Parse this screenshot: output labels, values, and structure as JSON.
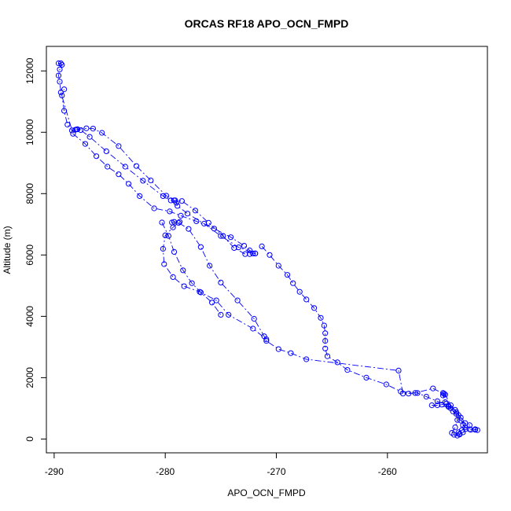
{
  "chart_data": {
    "type": "scatter",
    "title": "ORCAS RF18 APO_OCN_FMPD",
    "xlabel": "APO_OCN_FMPD",
    "ylabel": "Altitude (m)",
    "xlim": [
      -290.7,
      -251.0
    ],
    "ylim": [
      -450,
      12800
    ],
    "x_ticks": [
      -290,
      -280,
      -270,
      -260
    ],
    "y_ticks": [
      0,
      2000,
      4000,
      6000,
      8000,
      10000,
      12000
    ],
    "x_tick_labels": [
      "-290",
      "-280",
      "-270",
      "-260"
    ],
    "y_tick_labels": [
      "0",
      "2000",
      "4000",
      "6000",
      "8000",
      "10000",
      "12000"
    ],
    "grid": false,
    "legend": "none",
    "line_style": "dash-dot",
    "marker": "open-circle",
    "color": "#0000ff",
    "series": [
      {
        "points": [
          [
            -289.6,
            12250
          ],
          [
            -289.4,
            12250
          ],
          [
            -289.3,
            12200
          ],
          [
            -289.5,
            12050
          ],
          [
            -289.6,
            11850
          ],
          [
            -289.5,
            11650
          ],
          [
            -289.4,
            11300
          ],
          [
            -288.3,
            9950
          ],
          [
            -287.2,
            9620
          ],
          [
            -286.2,
            9220
          ],
          [
            -285.2,
            8880
          ],
          [
            -284.2,
            8630
          ],
          [
            -283.3,
            8320
          ],
          [
            -282.3,
            7920
          ],
          [
            -281.0,
            7520
          ],
          [
            -279.6,
            7420
          ],
          [
            -278.6,
            7280
          ],
          [
            -277.2,
            7100
          ],
          [
            -275.6,
            6860
          ],
          [
            -274.1,
            6580
          ],
          [
            -272.9,
            6300
          ],
          [
            -272.4,
            6150
          ],
          [
            -271.9,
            6050
          ],
          [
            -272.1,
            6050
          ],
          [
            -272.4,
            6030
          ]
        ]
      },
      {
        "points": [
          [
            -272.8,
            6030
          ],
          [
            -273.8,
            6230
          ],
          [
            -274.8,
            6620
          ],
          [
            -276.1,
            7050
          ],
          [
            -277.3,
            7450
          ],
          [
            -278.5,
            7760
          ],
          [
            -279.1,
            7780
          ],
          [
            -279.5,
            7780
          ],
          [
            -280.2,
            7920
          ],
          [
            -282.0,
            8420
          ],
          [
            -283.6,
            8880
          ],
          [
            -285.3,
            9380
          ],
          [
            -286.8,
            9850
          ],
          [
            -287.6,
            10070
          ],
          [
            -287.9,
            10100
          ],
          [
            -288.1,
            10080
          ],
          [
            -288.4,
            10060
          ],
          [
            -288.8,
            10250
          ],
          [
            -289.1,
            10700
          ],
          [
            -289.3,
            11200
          ],
          [
            -289.1,
            11400
          ]
        ]
      },
      {
        "points": [
          [
            -288.0,
            10090
          ],
          [
            -287.1,
            10130
          ],
          [
            -286.5,
            10120
          ],
          [
            -285.7,
            9980
          ],
          [
            -284.2,
            9550
          ],
          [
            -282.6,
            8900
          ],
          [
            -281.3,
            8430
          ],
          [
            -279.9,
            7930
          ],
          [
            -279.2,
            7780
          ],
          [
            -279.0,
            7700
          ],
          [
            -278.9,
            7600
          ],
          [
            -278.0,
            7350
          ],
          [
            -276.5,
            7020
          ],
          [
            -275.0,
            6620
          ],
          [
            -273.4,
            6250
          ],
          [
            -271.9,
            6050
          ]
        ]
      },
      {
        "points": [
          [
            -271.3,
            6280
          ],
          [
            -270.6,
            6000
          ],
          [
            -269.8,
            5650
          ],
          [
            -269.0,
            5350
          ],
          [
            -268.5,
            5080
          ],
          [
            -267.9,
            4800
          ],
          [
            -267.3,
            4550
          ],
          [
            -266.6,
            4270
          ],
          [
            -266.0,
            3950
          ],
          [
            -265.7,
            3700
          ],
          [
            -265.6,
            3450
          ],
          [
            -265.6,
            3200
          ],
          [
            -265.6,
            2950
          ],
          [
            -265.4,
            2700
          ],
          [
            -264.5,
            2500
          ],
          [
            -263.6,
            2250
          ],
          [
            -261.9,
            2000
          ],
          [
            -260.1,
            1780
          ],
          [
            -258.8,
            1550
          ],
          [
            -257.3,
            1500
          ],
          [
            -256.5,
            1380
          ],
          [
            -255.5,
            1230
          ],
          [
            -254.5,
            1080
          ],
          [
            -253.9,
            950
          ],
          [
            -253.4,
            700
          ],
          [
            -253.2,
            450
          ],
          [
            -253.0,
            380
          ],
          [
            -252.6,
            320
          ],
          [
            -252.1,
            300
          ],
          [
            -251.9,
            290
          ],
          [
            -252.1,
            320
          ],
          [
            -252.5,
            300
          ],
          [
            -253.2,
            220
          ],
          [
            -253.5,
            170
          ],
          [
            -253.7,
            110
          ],
          [
            -254.0,
            140
          ]
        ]
      },
      {
        "points": [
          [
            -254.2,
            200
          ],
          [
            -253.9,
            380
          ],
          [
            -253.7,
            620
          ],
          [
            -253.8,
            880
          ],
          [
            -254.3,
            1100
          ],
          [
            -254.8,
            1450
          ],
          [
            -255.9,
            1650
          ],
          [
            -257.5,
            1500
          ],
          [
            -258.1,
            1480
          ],
          [
            -258.6,
            1480
          ],
          [
            -259.0,
            2230
          ],
          [
            -267.3,
            2600
          ],
          [
            -268.7,
            2800
          ],
          [
            -269.8,
            2930
          ],
          [
            -270.9,
            3200
          ],
          [
            -271.1,
            3350
          ],
          [
            -272.0,
            3920
          ],
          [
            -273.5,
            4520
          ],
          [
            -275.0,
            5100
          ],
          [
            -276.0,
            5650
          ],
          [
            -276.8,
            6260
          ],
          [
            -277.9,
            6850
          ],
          [
            -278.8,
            7050
          ],
          [
            -279.4,
            7060
          ],
          [
            -279.2,
            7080
          ],
          [
            -278.7,
            7080
          ],
          [
            -279.3,
            6900
          ],
          [
            -280.0,
            6640
          ],
          [
            -280.2,
            6200
          ],
          [
            -280.1,
            5700
          ],
          [
            -279.3,
            5280
          ],
          [
            -278.3,
            4980
          ],
          [
            -276.9,
            4800
          ],
          [
            -275.4,
            4520
          ],
          [
            -274.3,
            4050
          ],
          [
            -272.1,
            3600
          ],
          [
            -270.9,
            3250
          ]
        ]
      },
      {
        "points": [
          [
            -280.3,
            7060
          ],
          [
            -279.7,
            6620
          ],
          [
            -279.2,
            6100
          ],
          [
            -278.4,
            5500
          ],
          [
            -277.6,
            5080
          ],
          [
            -276.8,
            4780
          ],
          [
            -275.8,
            4450
          ],
          [
            -275.0,
            4050
          ]
        ]
      },
      {
        "points": [
          [
            -255.0,
            1500
          ],
          [
            -254.9,
            1480
          ],
          [
            -255.0,
            1420
          ],
          [
            -254.8,
            1200
          ],
          [
            -254.7,
            1150
          ],
          [
            -255.1,
            1120
          ],
          [
            -255.5,
            1100
          ],
          [
            -256.0,
            1100
          ],
          [
            -254.5,
            1050
          ],
          [
            -254.3,
            1000
          ],
          [
            -254.1,
            900
          ],
          [
            -253.8,
            820
          ],
          [
            -253.6,
            780
          ],
          [
            -253.4,
            600
          ],
          [
            -253.0,
            520
          ],
          [
            -252.6,
            450
          ],
          [
            -253.3,
            290
          ],
          [
            -253.6,
            220
          ],
          [
            -253.5,
            150
          ]
        ]
      }
    ]
  }
}
